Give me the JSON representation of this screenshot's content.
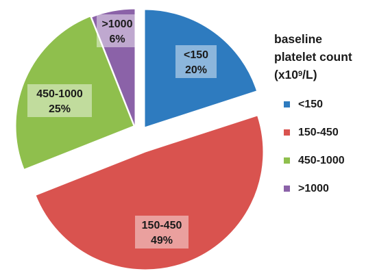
{
  "chart_data": {
    "type": "pie",
    "legend_title": {
      "line1": "baseline",
      "line2": "platelet count",
      "line3_prefix": "(x10",
      "line3_sup": "9",
      "line3_suffix": "/L)"
    },
    "legend_placement": "right",
    "exploded": true,
    "slices": [
      {
        "label": "<150",
        "value": 20,
        "percent_label": "20%",
        "color": "#2e7bbf"
      },
      {
        "label": "150-450",
        "value": 49,
        "percent_label": "49%",
        "color": "#d9534f"
      },
      {
        "label": "450-1000",
        "value": 25,
        "percent_label": "25%",
        "color": "#8fbf4d"
      },
      {
        "label": ">1000",
        "value": 6,
        "percent_label": "6%",
        "color": "#8b62a8"
      }
    ]
  }
}
